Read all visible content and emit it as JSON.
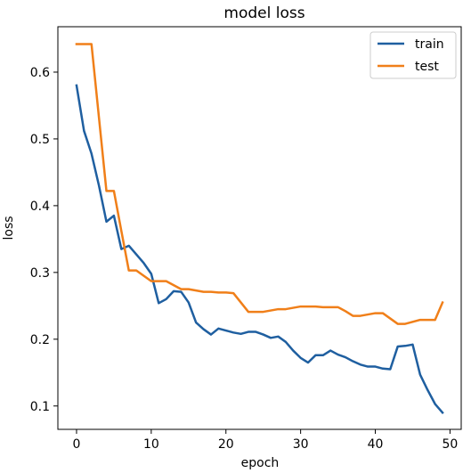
{
  "chart_data": {
    "type": "line",
    "title": "model loss",
    "xlabel": "epoch",
    "ylabel": "loss",
    "xlim": [
      -2.5,
      51.5
    ],
    "ylim": [
      0.065,
      0.668
    ],
    "xticks": [
      0,
      10,
      20,
      30,
      40,
      50
    ],
    "yticks": [
      0.1,
      0.2,
      0.3,
      0.4,
      0.5,
      0.6
    ],
    "xtick_labels": [
      "0",
      "10",
      "20",
      "30",
      "40",
      "50"
    ],
    "ytick_labels": [
      "0.1",
      "0.2",
      "0.3",
      "0.4",
      "0.5",
      "0.6"
    ],
    "grid": false,
    "legend_position": "top-right",
    "series": [
      {
        "name": "train",
        "color": "#1f5fa0",
        "x": [
          0,
          1,
          2,
          3,
          4,
          5,
          6,
          7,
          8,
          9,
          10,
          11,
          12,
          13,
          14,
          15,
          16,
          17,
          18,
          19,
          20,
          21,
          22,
          23,
          24,
          25,
          26,
          27,
          28,
          29,
          30,
          31,
          32,
          33,
          34,
          35,
          36,
          37,
          38,
          39,
          40,
          41,
          42,
          43,
          44,
          45,
          46,
          47,
          48,
          49
        ],
        "y": [
          0.58,
          0.512,
          0.478,
          0.43,
          0.376,
          0.385,
          0.335,
          0.34,
          0.327,
          0.314,
          0.298,
          0.254,
          0.26,
          0.272,
          0.271,
          0.255,
          0.225,
          0.215,
          0.207,
          0.216,
          0.213,
          0.21,
          0.208,
          0.211,
          0.211,
          0.207,
          0.202,
          0.204,
          0.196,
          0.183,
          0.172,
          0.165,
          0.176,
          0.176,
          0.183,
          0.177,
          0.173,
          0.167,
          0.162,
          0.159,
          0.159,
          0.156,
          0.155,
          0.189,
          0.19,
          0.192,
          0.147,
          0.124,
          0.103,
          0.09
        ]
      },
      {
        "name": "test",
        "color": "#f07f19",
        "x": [
          0,
          1,
          2,
          3,
          4,
          5,
          6,
          7,
          8,
          9,
          10,
          11,
          12,
          13,
          14,
          15,
          16,
          17,
          18,
          19,
          20,
          21,
          22,
          23,
          24,
          25,
          26,
          27,
          28,
          29,
          30,
          31,
          32,
          33,
          34,
          35,
          36,
          37,
          38,
          39,
          40,
          41,
          42,
          43,
          44,
          45,
          46,
          47,
          48,
          49
        ],
        "y": [
          0.642,
          0.642,
          0.642,
          0.532,
          0.422,
          0.422,
          0.362,
          0.303,
          0.303,
          0.295,
          0.287,
          0.287,
          0.287,
          0.281,
          0.275,
          0.275,
          0.273,
          0.271,
          0.271,
          0.27,
          0.27,
          0.269,
          0.255,
          0.241,
          0.241,
          0.241,
          0.243,
          0.245,
          0.245,
          0.247,
          0.249,
          0.249,
          0.249,
          0.248,
          0.248,
          0.248,
          0.242,
          0.235,
          0.235,
          0.237,
          0.239,
          0.239,
          0.231,
          0.223,
          0.223,
          0.226,
          0.229,
          0.229,
          0.229,
          0.255
        ]
      }
    ]
  }
}
